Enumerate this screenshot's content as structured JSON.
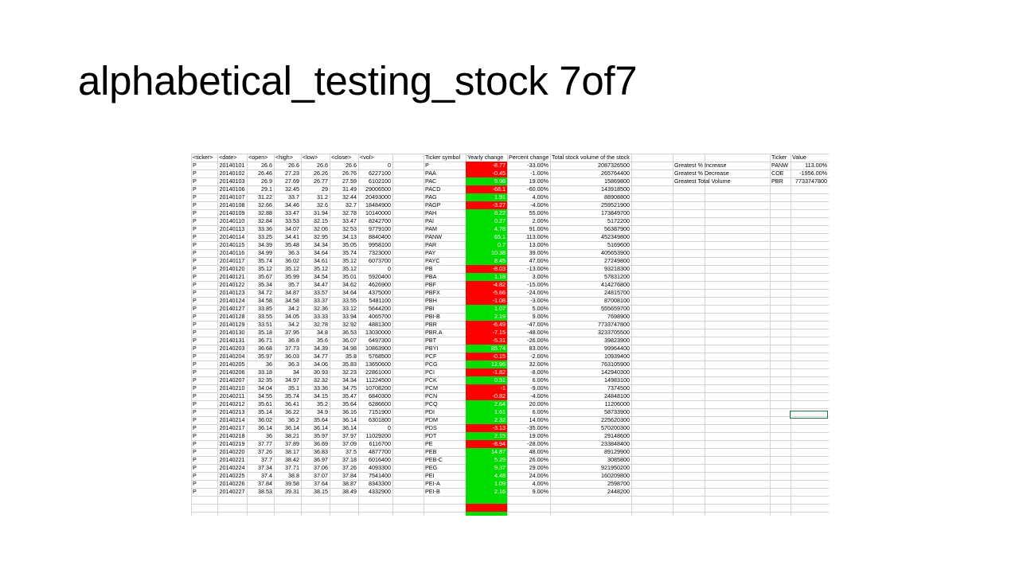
{
  "slide": {
    "title": "alphabetical_testing_stock 7of7"
  },
  "sheet": {
    "headers": [
      "<ticker>",
      "<date>",
      "<open>",
      "<high>",
      "<low>",
      "<close>",
      "<vol>"
    ],
    "rows": [
      [
        "P",
        "20140101",
        "26.6",
        "26.6",
        "26.6",
        "26.6",
        "0"
      ],
      [
        "P",
        "20140102",
        "26.46",
        "27.23",
        "26.26",
        "26.76",
        "6227100"
      ],
      [
        "P",
        "20140103",
        "26.9",
        "27.69",
        "26.77",
        "27.59",
        "6102100"
      ],
      [
        "P",
        "20140106",
        "29.1",
        "32.45",
        "29",
        "31.49",
        "29006500"
      ],
      [
        "P",
        "20140107",
        "31.22",
        "33.7",
        "31.2",
        "32.44",
        "20493000"
      ],
      [
        "P",
        "20140108",
        "32.66",
        "34.46",
        "32.6",
        "32.7",
        "18484900"
      ],
      [
        "P",
        "20140109",
        "32.88",
        "33.47",
        "31.94",
        "32.78",
        "10140000"
      ],
      [
        "P",
        "20140110",
        "32.84",
        "33.53",
        "32.15",
        "33.47",
        "8242700"
      ],
      [
        "P",
        "20140113",
        "33.36",
        "34.07",
        "32.06",
        "32.53",
        "9779100"
      ],
      [
        "P",
        "20140114",
        "33.25",
        "34.41",
        "32.95",
        "34.13",
        "8840400"
      ],
      [
        "P",
        "20140115",
        "34.39",
        "35.48",
        "34.34",
        "35.05",
        "9958100"
      ],
      [
        "P",
        "20140116",
        "34.99",
        "36.3",
        "34.64",
        "35.74",
        "7323000"
      ],
      [
        "P",
        "20140117",
        "35.74",
        "36.02",
        "34.61",
        "35.12",
        "6073700"
      ],
      [
        "P",
        "20140120",
        "35.12",
        "35.12",
        "35.12",
        "35.12",
        "0"
      ],
      [
        "P",
        "20140121",
        "35.67",
        "35.99",
        "34.54",
        "35.01",
        "5920400"
      ],
      [
        "P",
        "20140122",
        "35.34",
        "35.7",
        "34.47",
        "34.62",
        "4626900"
      ],
      [
        "P",
        "20140123",
        "34.72",
        "34.87",
        "33.57",
        "34.64",
        "4375000"
      ],
      [
        "P",
        "20140124",
        "34.58",
        "34.58",
        "33.37",
        "33.55",
        "5481100"
      ],
      [
        "P",
        "20140127",
        "33.85",
        "34.2",
        "32.36",
        "33.12",
        "5644200"
      ],
      [
        "P",
        "20140128",
        "33.55",
        "34.05",
        "33.33",
        "33.94",
        "4065700"
      ],
      [
        "P",
        "20140129",
        "33.51",
        "34.2",
        "32.78",
        "32.92",
        "4881300"
      ],
      [
        "P",
        "20140130",
        "35.18",
        "37.95",
        "34.8",
        "36.53",
        "13030000"
      ],
      [
        "P",
        "20140131",
        "36.71",
        "36.8",
        "35.6",
        "36.07",
        "6497300"
      ],
      [
        "P",
        "20140203",
        "36.68",
        "37.73",
        "34.39",
        "34.98",
        "10863900"
      ],
      [
        "P",
        "20140204",
        "35.97",
        "36.03",
        "34.77",
        "35.8",
        "5768500"
      ],
      [
        "P",
        "20140205",
        "36",
        "36.3",
        "34.06",
        "35.83",
        "13650600"
      ],
      [
        "P",
        "20140206",
        "33.18",
        "34",
        "30.93",
        "32.23",
        "22861000"
      ],
      [
        "P",
        "20140207",
        "32.35",
        "34.97",
        "32.32",
        "34.34",
        "11224500"
      ],
      [
        "P",
        "20140210",
        "34.04",
        "35.1",
        "33.36",
        "34.75",
        "10708200"
      ],
      [
        "P",
        "20140211",
        "34.55",
        "35.74",
        "34.15",
        "35.47",
        "6840300"
      ],
      [
        "P",
        "20140212",
        "35.61",
        "36.41",
        "35.2",
        "35.64",
        "6286600"
      ],
      [
        "P",
        "20140213",
        "35.14",
        "36.22",
        "34.9",
        "36.16",
        "7151900"
      ],
      [
        "P",
        "20140214",
        "36.02",
        "36.2",
        "35.64",
        "36.14",
        "6301800"
      ],
      [
        "P",
        "20140217",
        "36.14",
        "36.14",
        "36.14",
        "36.14",
        "0"
      ],
      [
        "P",
        "20140218",
        "36",
        "38.21",
        "35.97",
        "37.97",
        "11029200"
      ],
      [
        "P",
        "20140219",
        "37.77",
        "37.89",
        "36.69",
        "37.09",
        "6116700"
      ],
      [
        "P",
        "20140220",
        "37.26",
        "38.17",
        "36.83",
        "37.5",
        "4877700"
      ],
      [
        "P",
        "20140221",
        "37.7",
        "38.42",
        "36.97",
        "37.18",
        "6016400"
      ],
      [
        "P",
        "20140224",
        "37.34",
        "37.71",
        "37.06",
        "37.26",
        "4093300"
      ],
      [
        "P",
        "20140225",
        "37.4",
        "38.8",
        "37.07",
        "37.84",
        "7541400"
      ],
      [
        "P",
        "20140226",
        "37.84",
        "39.58",
        "37.64",
        "38.87",
        "8343300"
      ],
      [
        "P",
        "20140227",
        "38.53",
        "39.31",
        "38.15",
        "38.49",
        "4332900"
      ]
    ],
    "summary_headers": [
      "Ticker symbol",
      "Yearly change",
      "Percent change",
      "Total stock volume of the stock"
    ],
    "summary_rows": [
      [
        "P",
        "-8.77",
        "-33.00%",
        "2087326500"
      ],
      [
        "PAA",
        "-0.45",
        "-1.00%",
        "265764400"
      ],
      [
        "PAC",
        "9.98",
        "19.00%",
        "15869800"
      ],
      [
        "PACD",
        "-68.1",
        "-60.00%",
        "143918500"
      ],
      [
        "PAG",
        "1.91",
        "4.00%",
        "88908800"
      ],
      [
        "PAGP",
        "-3.27",
        "-4.00%",
        "259521900"
      ],
      [
        "PAH",
        "8.22",
        "55.00%",
        "173849700"
      ],
      [
        "PAI",
        "0.27",
        "2.00%",
        "5172200"
      ],
      [
        "PAM",
        "4.78",
        "91.00%",
        "56387900"
      ],
      [
        "PANW",
        "65.1",
        "113.00%",
        "452349800"
      ],
      [
        "PAR",
        "0.7",
        "13.00%",
        "5169600"
      ],
      [
        "PAY",
        "10.38",
        "39.00%",
        "405653900"
      ],
      [
        "PAYC",
        "8.45",
        "47.00%",
        "27249800"
      ],
      [
        "PB",
        "-8.03",
        "-13.00%",
        "93218300"
      ],
      [
        "PBA",
        "1.18",
        "3.00%",
        "57831200"
      ],
      [
        "PBF",
        "-4.82",
        "-15.00%",
        "414276800"
      ],
      [
        "PBFX",
        "-5.66",
        "-24.00%",
        "24815700"
      ],
      [
        "PBH",
        "-1.08",
        "-3.00%",
        "87008100"
      ],
      [
        "PBI",
        "1.07",
        "5.00%",
        "555659700"
      ],
      [
        "PBI-B",
        "2.19",
        "9.00%",
        "7698900"
      ],
      [
        "PBR",
        "-6.49",
        "-47.00%",
        "7733747800"
      ],
      [
        "PBR.A",
        "-7.15",
        "-48.00%",
        "3233705500"
      ],
      [
        "PBT",
        "-5.31",
        "-26.00%",
        "39823900"
      ],
      [
        "PBYI",
        "85.74",
        "83.00%",
        "99964400"
      ],
      [
        "PCF",
        "-0.15",
        "-2.00%",
        "10939400"
      ],
      [
        "PCG",
        "12.96",
        "32.00%",
        "763105900"
      ],
      [
        "PCI",
        "-1.82",
        "-8.00%",
        "142940300"
      ],
      [
        "PCK",
        "0.51",
        "6.00%",
        "14983100"
      ],
      [
        "PCM",
        "-1",
        "-9.00%",
        "7374500"
      ],
      [
        "PCN",
        "-0.82",
        "-4.00%",
        "24848100"
      ],
      [
        "PCQ",
        "2.64",
        "20.00%",
        "11206000"
      ],
      [
        "PDI",
        "1.61",
        "6.00%",
        "58733900"
      ],
      [
        "PDM",
        "2.32",
        "14.00%",
        "225620300"
      ],
      [
        "PDS",
        "-3.13",
        "-35.00%",
        "570200300"
      ],
      [
        "PDT",
        "2.15",
        "19.00%",
        "29148600"
      ],
      [
        "PE",
        "-8.94",
        "-28.00%",
        "233848400"
      ],
      [
        "PEB",
        "14.87",
        "48.00%",
        "89129900"
      ],
      [
        "PEB-C",
        "5.29",
        "26.00%",
        "3085800"
      ],
      [
        "PEG",
        "9.37",
        "29.00%",
        "921950200"
      ],
      [
        "PEI",
        "4.48",
        "24.00%",
        "160209800"
      ],
      [
        "PEI-A",
        "1.09",
        "4.00%",
        "2598700"
      ],
      [
        "PEI-B",
        "2.16",
        "9.00%",
        "2448200"
      ]
    ],
    "signs": [
      -1,
      -1,
      1,
      -1,
      1,
      -1,
      1,
      1,
      1,
      1,
      1,
      1,
      1,
      -1,
      1,
      -1,
      -1,
      -1,
      1,
      1,
      -1,
      -1,
      -1,
      1,
      -1,
      1,
      -1,
      1,
      -1,
      -1,
      1,
      1,
      1,
      -1,
      1,
      -1,
      1,
      1,
      1,
      1,
      1,
      1
    ],
    "greatest_headers": [
      "Ticker",
      "Value"
    ],
    "greatest_rows": [
      [
        "Greatest % Increase",
        "PANW",
        "113.00%"
      ],
      [
        "Greatest % Decrease",
        "COE",
        "-1956.00%"
      ],
      [
        "Greatest Total Volume",
        "PBR",
        "7733747800"
      ]
    ],
    "colors": {
      "positive": "#00dd00",
      "negative": "#ff0000",
      "grid": "#d4d4d4",
      "selection": "#217346"
    }
  }
}
